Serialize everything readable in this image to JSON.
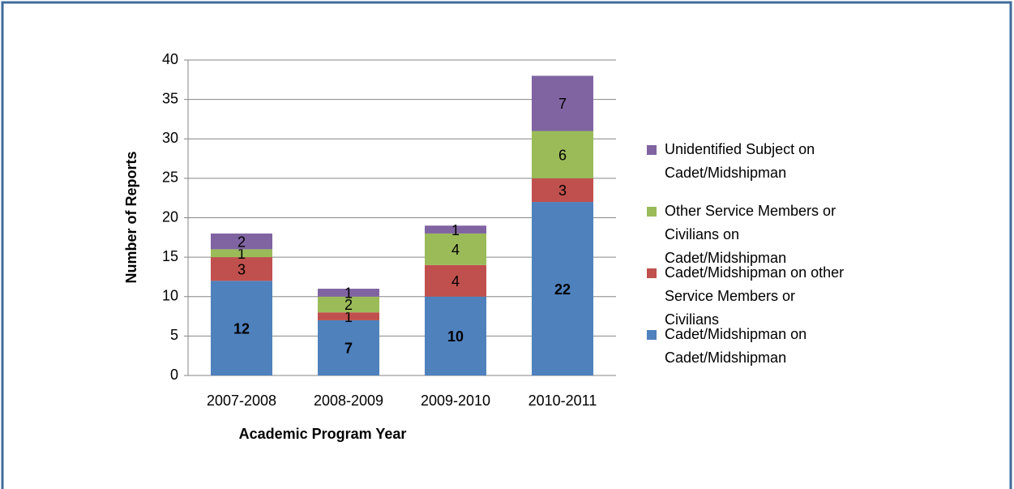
{
  "chart_data": {
    "type": "stacked_bar",
    "x_label": "Academic Program Year",
    "y_label": "Number of Reports",
    "categories": [
      "2007-2008",
      "2008-2009",
      "2009-2010",
      "2010-2011"
    ],
    "series": [
      {
        "name": "Cadet/Midshipman on Cadet/Midshipman",
        "color": "#4f81bd",
        "values": [
          12,
          7,
          10,
          22
        ]
      },
      {
        "name": "Cadet/Midshipman on other Service Members or Civilians",
        "color": "#c0504d",
        "values": [
          3,
          1,
          4,
          3
        ]
      },
      {
        "name": "Other Service Members or Civilians on Cadet/Midshipman",
        "color": "#9bbb59",
        "values": [
          1,
          2,
          4,
          6
        ]
      },
      {
        "name": "Unidentified Subject on Cadet/Midshipman",
        "color": "#8064a2",
        "values": [
          2,
          1,
          1,
          7
        ]
      }
    ],
    "ylim": [
      0,
      40
    ],
    "yticks": [
      0,
      5,
      10,
      15,
      20,
      25,
      30,
      35,
      40
    ],
    "grid": true,
    "legend": "right"
  }
}
